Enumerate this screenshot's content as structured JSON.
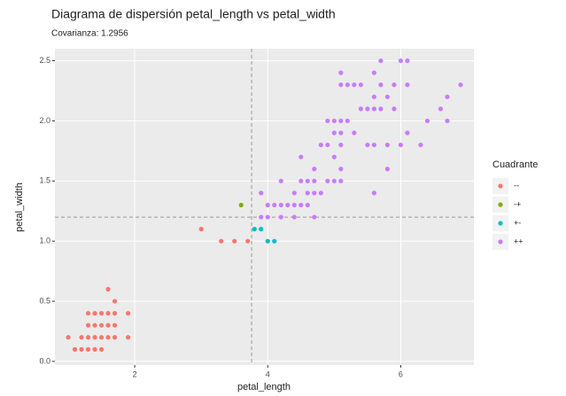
{
  "chart_data": {
    "type": "scatter",
    "title": "Diagrama de dispersión petal_length vs petal_width",
    "subtitle": "Covarianza: 1.2956",
    "x_label": "petal_length",
    "y_label": "petal_width",
    "legend_title": "Cuadrante",
    "legend_position": "right",
    "grid": true,
    "xlim": [
      0.8,
      7.1
    ],
    "ylim": [
      -0.03,
      2.6
    ],
    "xticks": [
      2,
      4,
      6
    ],
    "yticks": [
      {
        "value": 0,
        "label": "0.0"
      },
      {
        "value": 0.5,
        "label": "0.5"
      },
      {
        "value": 1,
        "label": "1.0"
      },
      {
        "value": 1.5,
        "label": "1.5"
      },
      {
        "value": 2,
        "label": "2.0"
      },
      {
        "value": 2.5,
        "label": "2.5"
      }
    ],
    "vline": 3.758,
    "hline": 1.199,
    "series": [
      {
        "name": "--",
        "color": "#F8766D",
        "x": [
          1.4,
          1.3,
          1.5,
          1.7,
          1.4,
          1.5,
          1.6,
          1.4,
          1.1,
          1.2,
          1.5,
          1.3,
          1.7,
          1.5,
          1.7,
          1.0,
          1.7,
          1.9,
          1.6,
          1.6,
          1.3,
          1.9,
          1.6,
          1.4,
          1.2,
          1.3,
          3.0,
          3.3,
          3.5,
          3.7
        ],
        "y": [
          0.2,
          0.2,
          0.2,
          0.4,
          0.3,
          0.1,
          0.2,
          0.1,
          0.1,
          0.2,
          0.4,
          0.4,
          0.3,
          0.3,
          0.2,
          0.2,
          0.5,
          0.2,
          0.4,
          0.6,
          0.3,
          0.4,
          0.3,
          0.4,
          0.1,
          0.1,
          1.1,
          1.0,
          1.0,
          1.0
        ]
      },
      {
        "name": "-+",
        "color": "#7CAE00",
        "x": [
          3.6
        ],
        "y": [
          1.3
        ]
      },
      {
        "name": "+-",
        "color": "#00BFC4",
        "x": [
          3.8,
          3.9,
          4.0,
          4.1
        ],
        "y": [
          1.1,
          1.1,
          1.0,
          1.0
        ]
      },
      {
        "name": "++",
        "color": "#C77CFF",
        "x": [
          3.9,
          3.9,
          4.0,
          4.0,
          4.1,
          4.2,
          4.2,
          4.2,
          4.3,
          4.4,
          4.4,
          4.4,
          4.5,
          4.5,
          4.5,
          4.6,
          4.6,
          4.6,
          4.7,
          4.7,
          4.7,
          4.7,
          4.8,
          4.8,
          4.9,
          4.9,
          4.9,
          5.0,
          5.0,
          5.0,
          5.0,
          5.1,
          5.1,
          5.1,
          5.1,
          5.1,
          5.1,
          5.1,
          5.2,
          5.2,
          5.3,
          5.3,
          5.4,
          5.4,
          5.5,
          5.5,
          5.6,
          5.6,
          5.6,
          5.6,
          5.6,
          5.7,
          5.7,
          5.7,
          5.8,
          5.8,
          5.8,
          5.9,
          5.9,
          6.0,
          6.0,
          6.1,
          6.1,
          6.1,
          6.3,
          6.4,
          6.6,
          6.7,
          6.7,
          6.9
        ],
        "y": [
          1.2,
          1.4,
          1.2,
          1.3,
          1.3,
          1.2,
          1.3,
          1.5,
          1.3,
          1.2,
          1.3,
          1.4,
          1.3,
          1.5,
          1.7,
          1.3,
          1.4,
          1.5,
          1.2,
          1.4,
          1.5,
          1.6,
          1.4,
          1.8,
          1.5,
          1.8,
          2.0,
          1.5,
          1.7,
          2.0,
          1.9,
          1.5,
          1.6,
          1.8,
          1.9,
          2.0,
          2.3,
          2.4,
          2.0,
          2.3,
          1.9,
          2.3,
          2.1,
          2.3,
          1.8,
          2.1,
          1.4,
          1.8,
          2.1,
          2.2,
          2.4,
          2.1,
          2.3,
          2.5,
          1.6,
          1.8,
          2.2,
          2.1,
          2.3,
          1.8,
          2.5,
          1.9,
          2.3,
          2.5,
          1.8,
          2.0,
          2.1,
          2.0,
          2.2,
          2.3
        ]
      }
    ]
  }
}
